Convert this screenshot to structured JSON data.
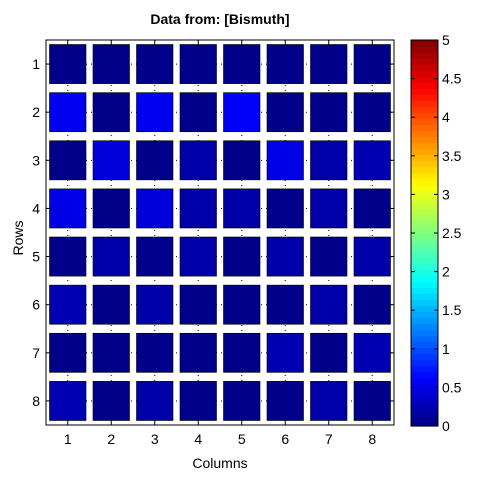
{
  "chart_data": {
    "type": "heatmap",
    "title": "Data from: [Bismuth]",
    "xlabel": "Columns",
    "ylabel": "Rows",
    "x_categories": [
      "1",
      "2",
      "3",
      "4",
      "5",
      "6",
      "7",
      "8"
    ],
    "y_categories": [
      "1",
      "2",
      "3",
      "4",
      "5",
      "6",
      "7",
      "8"
    ],
    "grid": "dotted",
    "colormap": "jet",
    "clim": [
      0,
      5
    ],
    "colorbar": {
      "placement": "right",
      "ticks": [
        0,
        0.5,
        1,
        1.5,
        2,
        2.5,
        3,
        3.5,
        4,
        4.5,
        5
      ],
      "tick_labels": [
        "0",
        "0.5",
        "1",
        "1.5",
        "2",
        "2.5",
        "3",
        "3.5",
        "4",
        "4.5",
        "5"
      ]
    },
    "values": [
      [
        0.05,
        0.05,
        0.05,
        0.05,
        0.05,
        0.05,
        0.05,
        0.05
      ],
      [
        0.55,
        0.05,
        0.55,
        0.05,
        0.6,
        0.05,
        0.05,
        0.05
      ],
      [
        0.05,
        0.45,
        0.05,
        0.2,
        0.05,
        0.5,
        0.2,
        0.25
      ],
      [
        0.5,
        0.05,
        0.45,
        0.2,
        0.2,
        0.05,
        0.2,
        0.05
      ],
      [
        0.05,
        0.2,
        0.05,
        0.2,
        0.05,
        0.2,
        0.05,
        0.2
      ],
      [
        0.25,
        0.05,
        0.2,
        0.05,
        0.05,
        0.05,
        0.2,
        0.05
      ],
      [
        0.05,
        0.05,
        0.05,
        0.05,
        0.05,
        0.25,
        0.05,
        0.25
      ],
      [
        0.25,
        0.05,
        0.2,
        0.05,
        0.05,
        0.05,
        0.2,
        0.05
      ]
    ]
  }
}
